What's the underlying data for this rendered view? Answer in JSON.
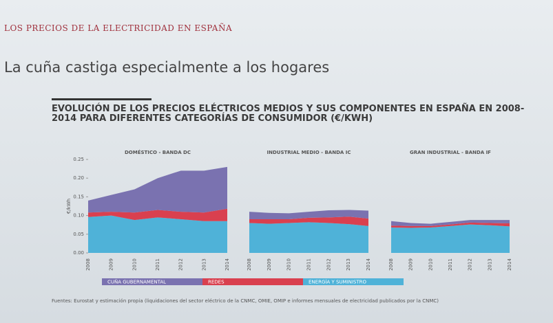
{
  "header": "LOS PRECIOS DE LA ELECTRICIDAD EN ESPAÑA",
  "subtitle": "La cuña castiga especialmente a los hogares",
  "figure_title": "EVOLUCIÓN DE LOS PRECIOS ELÉCTRICOS MEDIOS Y SUS COMPONENTES EN ESPAÑA EN 2008-2014 PARA DIFERENTES CATEGORÍAS DE CONSUMIDOR (€/KWH)",
  "source": "Fuentes: Eurostat y estimación propia (liquidaciones del sector eléctrico de la CNMC, OMIE, OMIP e informes mensuales de electricidad publicados por la CNMC)",
  "chart_data": [
    {
      "type": "area",
      "stacked": true,
      "title": "DOMÉSTICO - BANDA DC",
      "y_label": "€/kWh",
      "categories": [
        "2008",
        "2009",
        "2010",
        "2011",
        "2012",
        "2013",
        "2014"
      ],
      "ylim": [
        0,
        0.25
      ],
      "yticks": [
        {
          "value": 0,
          "label": "0.00"
        },
        0.05,
        {
          "value": 0.1,
          "label": "0.10"
        },
        0.15,
        {
          "value": 0.2,
          "label": "0.20"
        },
        0.25
      ],
      "series": [
        {
          "name": "ENERGÍA Y SUMINISTRO",
          "color": "#4fb2d8",
          "values": [
            0.096,
            0.1,
            0.088,
            0.095,
            0.09,
            0.085,
            0.085
          ]
        },
        {
          "name": "REDES",
          "color": "#d9404f",
          "values": [
            0.012,
            0.01,
            0.02,
            0.02,
            0.02,
            0.023,
            0.033
          ]
        },
        {
          "name": "CUÑA GUBERNAMENTAL",
          "color": "#7a72b0",
          "values": [
            0.032,
            0.045,
            0.062,
            0.085,
            0.11,
            0.112,
            0.112
          ]
        }
      ]
    },
    {
      "type": "area",
      "stacked": true,
      "title": "INDUSTRIAL MEDIO - BANDA IC",
      "categories": [
        "2008",
        "2009",
        "2010",
        "2011",
        "2012",
        "2013",
        "2014"
      ],
      "ylim": [
        0,
        0.25
      ],
      "series": [
        {
          "color": "#4fb2d8",
          "values": [
            0.08,
            0.078,
            0.08,
            0.082,
            0.08,
            0.077,
            0.072
          ]
        },
        {
          "color": "#d9404f",
          "values": [
            0.01,
            0.012,
            0.01,
            0.012,
            0.015,
            0.02,
            0.02
          ]
        },
        {
          "color": "#7a72b0",
          "values": [
            0.02,
            0.017,
            0.016,
            0.016,
            0.019,
            0.018,
            0.021
          ]
        }
      ]
    },
    {
      "type": "area",
      "stacked": true,
      "title": "GRAN INDUSTRIAL - BANDA IF",
      "categories": [
        "2008",
        "2009",
        "2010",
        "2011",
        "2012",
        "2013",
        "2014"
      ],
      "ylim": [
        0,
        0.25
      ],
      "series": [
        {
          "color": "#4fb2d8",
          "values": [
            0.068,
            0.067,
            0.068,
            0.072,
            0.076,
            0.074,
            0.071
          ]
        },
        {
          "color": "#d9404f",
          "values": [
            0.005,
            0.005,
            0.004,
            0.004,
            0.005,
            0.006,
            0.008
          ]
        },
        {
          "color": "#7a72b0",
          "values": [
            0.012,
            0.008,
            0.006,
            0.007,
            0.007,
            0.008,
            0.009
          ]
        }
      ]
    }
  ]
}
